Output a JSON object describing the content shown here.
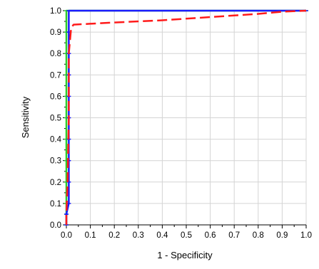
{
  "chart_data": {
    "type": "line",
    "xlabel": "1 - Specificity",
    "ylabel": "Sensitivity",
    "xlim": [
      0,
      1
    ],
    "ylim": [
      0,
      1
    ],
    "grid": true,
    "x_ticks": [
      0.0,
      0.1,
      0.2,
      0.3,
      0.4,
      0.5,
      0.6,
      0.7,
      0.8,
      0.9,
      1.0
    ],
    "x_tick_labels": [
      "0.0",
      "0.1",
      "0.2",
      "0.3",
      "0.4",
      "0.5",
      "0.6",
      "0.7",
      "0.8",
      "0.9",
      "1.0"
    ],
    "y_ticks": [
      0.0,
      0.1,
      0.2,
      0.3,
      0.4,
      0.5,
      0.6,
      0.7,
      0.8,
      0.9,
      1.0
    ],
    "y_tick_labels": [
      "0.0",
      "0.1",
      "0.2",
      "0.3",
      "0.4",
      "0.5",
      "0.6",
      "0.7",
      "0.8",
      "0.9",
      "1.0"
    ],
    "series": [
      {
        "color": "#2bcc2b",
        "style": "solid",
        "marker": "cross",
        "points": [
          [
            0.0,
            0.0
          ],
          [
            0.0,
            0.05
          ],
          [
            0.0,
            0.1
          ],
          [
            0.0,
            0.2
          ],
          [
            0.0,
            0.3
          ],
          [
            0.0,
            0.4
          ],
          [
            0.0,
            0.5
          ],
          [
            0.0,
            0.6
          ],
          [
            0.0,
            0.7
          ],
          [
            0.0,
            0.8
          ],
          [
            0.0,
            0.9
          ],
          [
            0.0,
            1.0
          ],
          [
            1.0,
            1.0
          ]
        ]
      },
      {
        "color": "#1a1aff",
        "style": "solid",
        "marker": "cross",
        "points": [
          [
            0.0,
            0.0
          ],
          [
            0.0,
            0.05
          ],
          [
            0.01,
            0.1
          ],
          [
            0.01,
            0.2
          ],
          [
            0.01,
            0.3
          ],
          [
            0.01,
            0.4
          ],
          [
            0.01,
            0.5
          ],
          [
            0.01,
            0.6
          ],
          [
            0.01,
            0.7
          ],
          [
            0.01,
            0.8
          ],
          [
            0.01,
            0.9
          ],
          [
            0.01,
            1.0
          ],
          [
            1.0,
            1.0
          ]
        ]
      },
      {
        "color": "#ff1a1a",
        "style": "dashed",
        "marker": "none",
        "points": [
          [
            0.0,
            0.0
          ],
          [
            0.0,
            0.05
          ],
          [
            0.005,
            0.2
          ],
          [
            0.01,
            0.5
          ],
          [
            0.01,
            0.8
          ],
          [
            0.02,
            0.92
          ],
          [
            0.03,
            0.935
          ],
          [
            0.2,
            0.945
          ],
          [
            0.4,
            0.955
          ],
          [
            0.6,
            0.97
          ],
          [
            0.8,
            0.985
          ],
          [
            0.9,
            0.995
          ],
          [
            1.0,
            1.0
          ]
        ]
      }
    ]
  }
}
